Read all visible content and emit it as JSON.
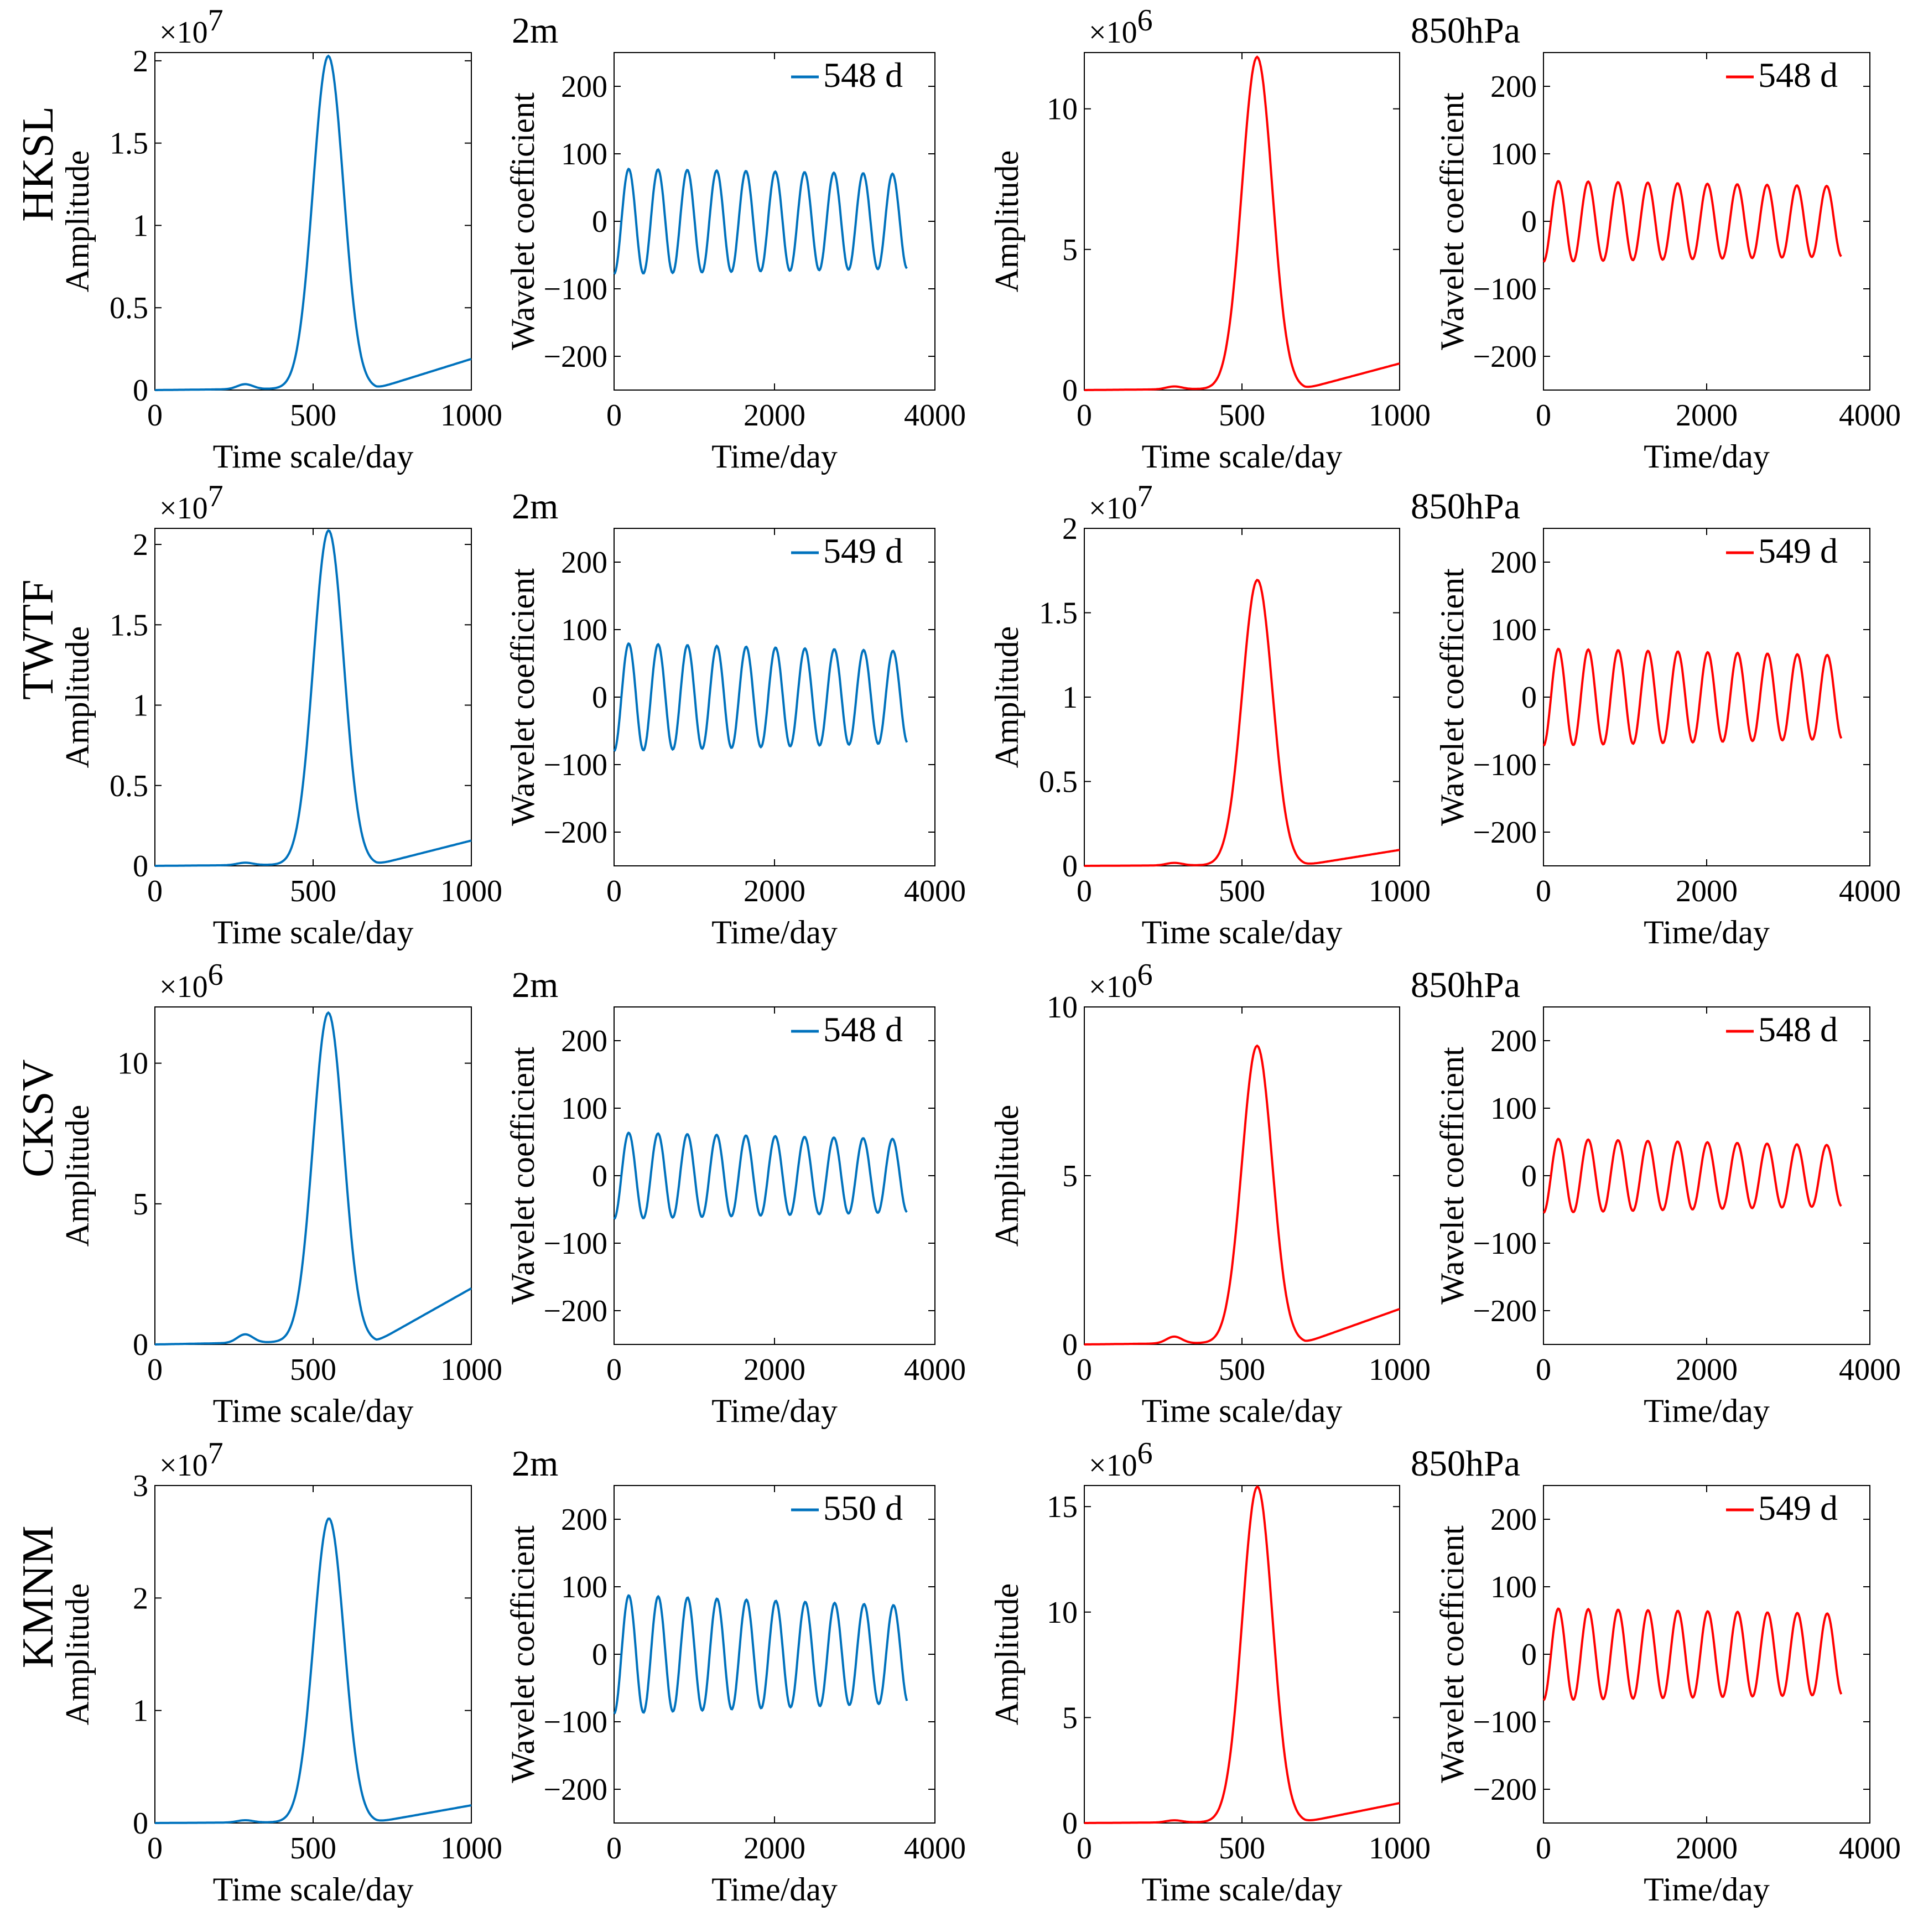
{
  "figure": {
    "rows": [
      {
        "station": "HKSL",
        "panels": [
          {
            "level": "",
            "kind": "amplitude",
            "color": "#0072BD",
            "multiplier_base": "×10",
            "multiplier_exp": "7",
            "ytick_labels": [
              "0",
              "0.5",
              "1",
              "1.5",
              "2"
            ],
            "ylim": [
              0,
              2.05
            ],
            "peak_day": 548,
            "peak": 2.02,
            "baseline_end": 0.18,
            "ripple": 0.03
          },
          {
            "level": "2m",
            "kind": "wavelet",
            "color": "#0072BD",
            "legend": "548 d",
            "period": 548,
            "amp_start": 78,
            "amp_end": 70
          },
          {
            "level": "",
            "kind": "amplitude",
            "color": "#FF0000",
            "multiplier_base": "×10",
            "multiplier_exp": "6",
            "ytick_labels": [
              "0",
              "5",
              "10"
            ],
            "ylim": [
              0,
              12
            ],
            "peak_day": 548,
            "peak": 11.8,
            "baseline_end": 0.9,
            "ripple": 0.1
          },
          {
            "level": "850hPa",
            "kind": "wavelet",
            "color": "#FF0000",
            "legend": "548 d",
            "period": 548,
            "amp_start": 60,
            "amp_end": 52
          }
        ]
      },
      {
        "station": "TWTF",
        "panels": [
          {
            "level": "",
            "kind": "amplitude",
            "color": "#0072BD",
            "multiplier_base": "×10",
            "multiplier_exp": "7",
            "ytick_labels": [
              "0",
              "0.5",
              "1",
              "1.5",
              "2"
            ],
            "ylim": [
              0,
              2.1
            ],
            "peak_day": 549,
            "peak": 2.08,
            "baseline_end": 0.15,
            "ripple": 0.015
          },
          {
            "level": "2m",
            "kind": "wavelet",
            "color": "#0072BD",
            "legend": "549 d",
            "period": 549,
            "amp_start": 80,
            "amp_end": 68
          },
          {
            "level": "",
            "kind": "amplitude",
            "color": "#FF0000",
            "multiplier_base": "×10",
            "multiplier_exp": "7",
            "ytick_labels": [
              "0",
              "0.5",
              "1",
              "1.5",
              "2"
            ],
            "ylim": [
              0,
              2
            ],
            "peak_day": 549,
            "peak": 1.69,
            "baseline_end": 0.09,
            "ripple": 0.015
          },
          {
            "level": "850hPa",
            "kind": "wavelet",
            "color": "#FF0000",
            "legend": "549 d",
            "period": 549,
            "amp_start": 72,
            "amp_end": 62
          }
        ]
      },
      {
        "station": "CKSV",
        "panels": [
          {
            "level": "",
            "kind": "amplitude",
            "color": "#0072BD",
            "multiplier_base": "×10",
            "multiplier_exp": "6",
            "ytick_labels": [
              "0",
              "5",
              "10"
            ],
            "ylim": [
              0,
              12
            ],
            "peak_day": 548,
            "peak": 11.7,
            "baseline_end": 1.9,
            "ripple": 0.3
          },
          {
            "level": "2m",
            "kind": "wavelet",
            "color": "#0072BD",
            "legend": "548 d",
            "period": 548,
            "amp_start": 64,
            "amp_end": 54
          },
          {
            "level": "",
            "kind": "amplitude",
            "color": "#FF0000",
            "multiplier_base": "×10",
            "multiplier_exp": "6",
            "ytick_labels": [
              "0",
              "5",
              "10"
            ],
            "ylim": [
              0,
              10
            ],
            "peak_day": 548,
            "peak": 8.8,
            "baseline_end": 1.0,
            "ripple": 0.2
          },
          {
            "level": "850hPa",
            "kind": "wavelet",
            "color": "#FF0000",
            "legend": "548 d",
            "period": 548,
            "amp_start": 55,
            "amp_end": 45
          }
        ]
      },
      {
        "station": "KMNM",
        "panels": [
          {
            "level": "",
            "kind": "amplitude",
            "color": "#0072BD",
            "multiplier_base": "×10",
            "multiplier_exp": "7",
            "ytick_labels": [
              "0",
              "1",
              "2",
              "3"
            ],
            "ylim": [
              0,
              3
            ],
            "peak_day": 550,
            "peak": 2.7,
            "baseline_end": 0.15,
            "ripple": 0.02
          },
          {
            "level": "2m",
            "kind": "wavelet",
            "color": "#0072BD",
            "legend": "550 d",
            "period": 550,
            "amp_start": 88,
            "amp_end": 72
          },
          {
            "level": "",
            "kind": "amplitude",
            "color": "#FF0000",
            "multiplier_base": "×10",
            "multiplier_exp": "6",
            "ytick_labels": [
              "0",
              "5",
              "10",
              "15"
            ],
            "ylim": [
              0,
              16
            ],
            "peak_day": 549,
            "peak": 15.9,
            "baseline_end": 0.9,
            "ripple": 0.1
          },
          {
            "level": "850hPa",
            "kind": "wavelet",
            "color": "#FF0000",
            "legend": "549 d",
            "period": 549,
            "amp_start": 68,
            "amp_end": 60
          }
        ]
      }
    ]
  },
  "amplitude_axes": {
    "xlabel": "Time scale/day",
    "ylabel": "Amplitude",
    "xtick_labels": [
      "0",
      "500",
      "1000"
    ],
    "xlim": [
      0,
      1000
    ]
  },
  "wavelet_axes": {
    "xlabel": "Time/day",
    "ylabel": "Wavelet coefficient",
    "xtick_labels": [
      "0",
      "2000",
      "4000"
    ],
    "ytick_labels": [
      "−200",
      "−100",
      "0",
      "100",
      "200"
    ],
    "xlim": [
      0,
      4000
    ],
    "ylim": [
      -250,
      250
    ],
    "series_end_day": 3650
  },
  "chart_data": [
    {
      "type": "line",
      "station": "HKSL",
      "level": "2m",
      "panel": "amplitude",
      "xlabel": "Time scale/day",
      "ylabel": "Amplitude",
      "scale": "×10^7",
      "xlim": [
        0,
        1000
      ],
      "ylim": [
        0,
        2.05
      ],
      "peak_x": 548,
      "peak_y": 2.02
    },
    {
      "type": "line",
      "station": "HKSL",
      "level": "2m",
      "panel": "wavelet",
      "xlabel": "Time/day",
      "ylabel": "Wavelet coefficient",
      "legend": "548 d",
      "xlim": [
        0,
        4000
      ],
      "ylim": [
        -250,
        250
      ],
      "amplitude_range": [
        78,
        70
      ]
    },
    {
      "type": "line",
      "station": "HKSL",
      "level": "850hPa",
      "panel": "amplitude",
      "xlabel": "Time scale/day",
      "ylabel": "Amplitude",
      "scale": "×10^6",
      "xlim": [
        0,
        1000
      ],
      "ylim": [
        0,
        12
      ],
      "peak_x": 548,
      "peak_y": 11.8
    },
    {
      "type": "line",
      "station": "HKSL",
      "level": "850hPa",
      "panel": "wavelet",
      "xlabel": "Time/day",
      "ylabel": "Wavelet coefficient",
      "legend": "548 d",
      "xlim": [
        0,
        4000
      ],
      "ylim": [
        -250,
        250
      ],
      "amplitude_range": [
        60,
        52
      ]
    },
    {
      "type": "line",
      "station": "TWTF",
      "level": "2m",
      "panel": "amplitude",
      "xlabel": "Time scale/day",
      "ylabel": "Amplitude",
      "scale": "×10^7",
      "xlim": [
        0,
        1000
      ],
      "ylim": [
        0,
        2.1
      ],
      "peak_x": 549,
      "peak_y": 2.08
    },
    {
      "type": "line",
      "station": "TWTF",
      "level": "2m",
      "panel": "wavelet",
      "xlabel": "Time/day",
      "ylabel": "Wavelet coefficient",
      "legend": "549 d",
      "xlim": [
        0,
        4000
      ],
      "ylim": [
        -250,
        250
      ],
      "amplitude_range": [
        80,
        68
      ]
    },
    {
      "type": "line",
      "station": "TWTF",
      "level": "850hPa",
      "panel": "amplitude",
      "xlabel": "Time scale/day",
      "ylabel": "Amplitude",
      "scale": "×10^7",
      "xlim": [
        0,
        1000
      ],
      "ylim": [
        0,
        2
      ],
      "peak_x": 549,
      "peak_y": 1.69
    },
    {
      "type": "line",
      "station": "TWTF",
      "level": "850hPa",
      "panel": "wavelet",
      "xlabel": "Time/day",
      "ylabel": "Wavelet coefficient",
      "legend": "549 d",
      "xlim": [
        0,
        4000
      ],
      "ylim": [
        -250,
        250
      ],
      "amplitude_range": [
        72,
        62
      ]
    },
    {
      "type": "line",
      "station": "CKSV",
      "level": "2m",
      "panel": "amplitude",
      "xlabel": "Time scale/day",
      "ylabel": "Amplitude",
      "scale": "×10^6",
      "xlim": [
        0,
        1000
      ],
      "ylim": [
        0,
        12
      ],
      "peak_x": 548,
      "peak_y": 11.7
    },
    {
      "type": "line",
      "station": "CKSV",
      "level": "2m",
      "panel": "wavelet",
      "xlabel": "Time/day",
      "ylabel": "Wavelet coefficient",
      "legend": "548 d",
      "xlim": [
        0,
        4000
      ],
      "ylim": [
        -250,
        250
      ],
      "amplitude_range": [
        64,
        54
      ]
    },
    {
      "type": "line",
      "station": "CKSV",
      "level": "850hPa",
      "panel": "amplitude",
      "xlabel": "Time scale/day",
      "ylabel": "Amplitude",
      "scale": "×10^6",
      "xlim": [
        0,
        1000
      ],
      "ylim": [
        0,
        10
      ],
      "peak_x": 548,
      "peak_y": 8.8
    },
    {
      "type": "line",
      "station": "CKSV",
      "level": "850hPa",
      "panel": "wavelet",
      "xlabel": "Time/day",
      "ylabel": "Wavelet coefficient",
      "legend": "548 d",
      "xlim": [
        0,
        4000
      ],
      "ylim": [
        -250,
        250
      ],
      "amplitude_range": [
        55,
        45
      ]
    },
    {
      "type": "line",
      "station": "KMNM",
      "level": "2m",
      "panel": "amplitude",
      "xlabel": "Time scale/day",
      "ylabel": "Amplitude",
      "scale": "×10^7",
      "xlim": [
        0,
        1000
      ],
      "ylim": [
        0,
        3
      ],
      "peak_x": 550,
      "peak_y": 2.7
    },
    {
      "type": "line",
      "station": "KMNM",
      "level": "2m",
      "panel": "wavelet",
      "xlabel": "Time/day",
      "ylabel": "Wavelet coefficient",
      "legend": "550 d",
      "xlim": [
        0,
        4000
      ],
      "ylim": [
        -250,
        250
      ],
      "amplitude_range": [
        88,
        72
      ]
    },
    {
      "type": "line",
      "station": "KMNM",
      "level": "850hPa",
      "panel": "amplitude",
      "xlabel": "Time scale/day",
      "ylabel": "Amplitude",
      "scale": "×10^6",
      "xlim": [
        0,
        1000
      ],
      "ylim": [
        0,
        16
      ],
      "peak_x": 549,
      "peak_y": 15.9
    },
    {
      "type": "line",
      "station": "KMNM",
      "level": "850hPa",
      "panel": "wavelet",
      "xlabel": "Time/day",
      "ylabel": "Wavelet coefficient",
      "legend": "549 d",
      "xlim": [
        0,
        4000
      ],
      "ylim": [
        -250,
        250
      ],
      "amplitude_range": [
        68,
        60
      ]
    }
  ]
}
